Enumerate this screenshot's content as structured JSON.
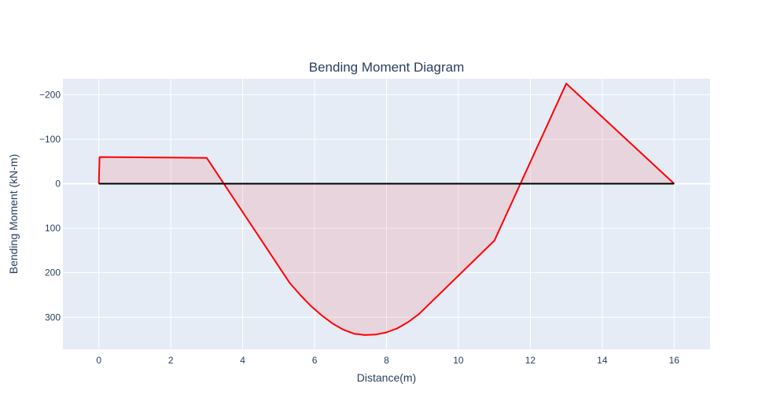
{
  "chart_data": {
    "type": "area",
    "title": "Bending Moment Diagram",
    "xlabel": "Distance(m)",
    "ylabel": "Bending Moment (kN-m)",
    "xlim": [
      -1,
      17
    ],
    "ylim": [
      -236,
      372
    ],
    "y_axis_reversed": true,
    "grid": true,
    "x_ticks": [
      0,
      2,
      4,
      6,
      8,
      10,
      12,
      14,
      16
    ],
    "x_tick_labels": [
      "0",
      "2",
      "4",
      "6",
      "8",
      "10",
      "12",
      "14",
      "16"
    ],
    "y_ticks": [
      -200,
      -100,
      0,
      100,
      200,
      300
    ],
    "y_tick_labels": [
      "−200",
      "−100",
      "0",
      "100",
      "200",
      "300"
    ],
    "series": [
      {
        "color": "#ff0000",
        "fill": "rgba(255,0,0,0.1)",
        "x": [
          0,
          0.02,
          3,
          5.3,
          5.6,
          5.9,
          6.2,
          6.5,
          6.8,
          7.1,
          7.4,
          7.7,
          8.0,
          8.3,
          8.6,
          8.9,
          11,
          13,
          16
        ],
        "y": [
          0,
          -60,
          -58,
          222,
          250,
          275,
          296,
          314,
          328,
          337,
          340,
          339,
          334,
          325,
          311,
          293,
          128,
          -225,
          0
        ]
      },
      {
        "color": "#000000",
        "x": [
          0,
          16
        ],
        "y": [
          0,
          0
        ]
      }
    ]
  },
  "colors": {
    "plot_background": "#e5ecf6",
    "grid": "#ffffff",
    "text": "#2a3f5f"
  }
}
